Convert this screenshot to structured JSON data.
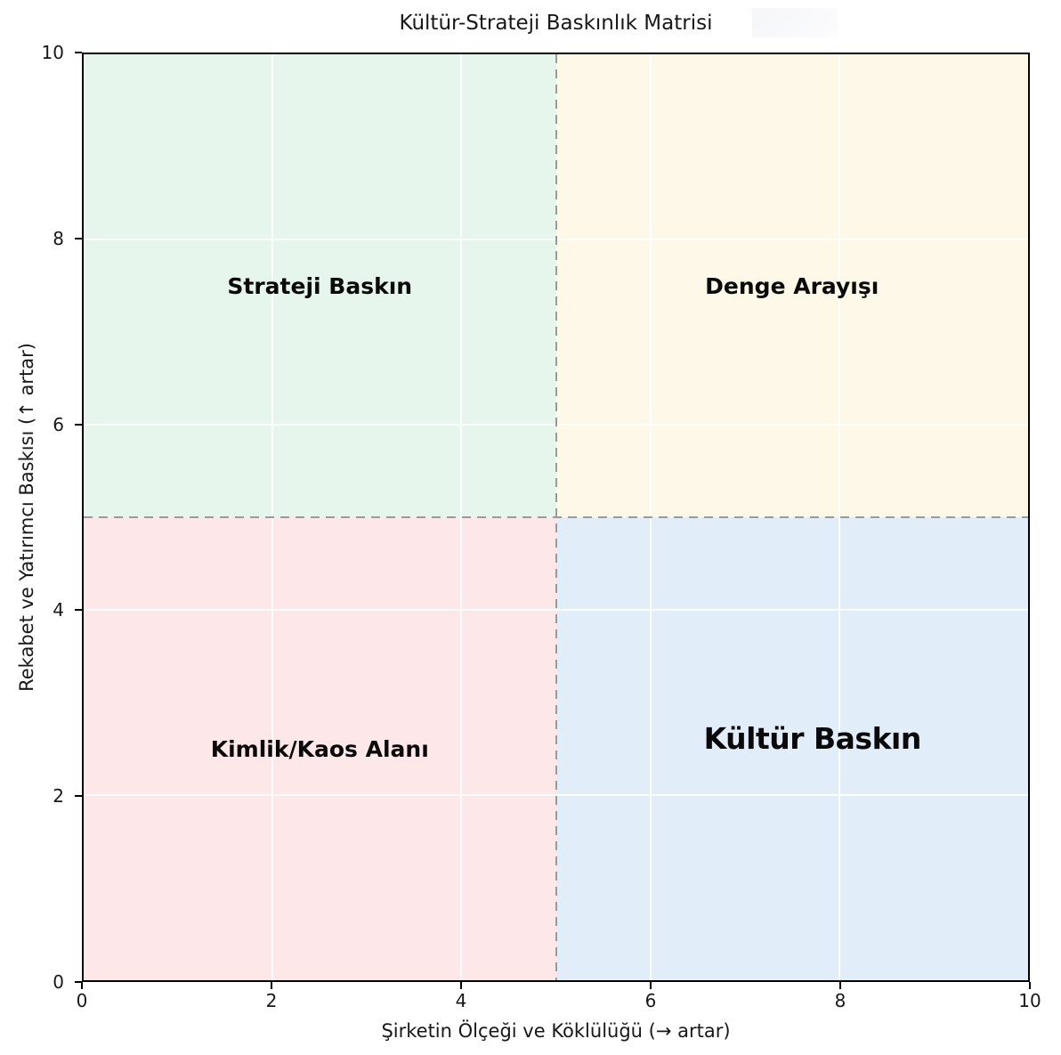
{
  "chart_data": {
    "type": "quadrant-matrix",
    "title": "Kültür-Strateji Baskınlık Matrisi",
    "xlabel": "Şirketin Ölçeği ve Köklülüğü (→ artar)",
    "ylabel": "Rekabet ve Yatırımcı Baskısı (↑ artar)",
    "xlim": [
      0,
      10
    ],
    "ylim": [
      0,
      10
    ],
    "xticks": [
      0,
      2,
      4,
      6,
      8,
      10
    ],
    "yticks": [
      0,
      2,
      4,
      6,
      8,
      10
    ],
    "grid": true,
    "grid_color": "#ffffff",
    "dividers": {
      "x": 5,
      "y": 5,
      "color": "#9a9a9a",
      "line_style": "dashed"
    },
    "quadrants": [
      {
        "position": "top-left",
        "label": "Strateji Baskın",
        "color": "#e7f6ed",
        "x_range": [
          0,
          5
        ],
        "y_range": [
          5,
          10
        ],
        "label_at": [
          2.5,
          7.5
        ]
      },
      {
        "position": "top-right",
        "label": "Denge Arayışı",
        "color": "#fdf8e7",
        "x_range": [
          5,
          10
        ],
        "y_range": [
          5,
          10
        ],
        "label_at": [
          7.5,
          7.5
        ]
      },
      {
        "position": "bottom-left",
        "label": "Kimlik/Kaos Alanı",
        "color": "#fde7e9",
        "x_range": [
          0,
          5
        ],
        "y_range": [
          0,
          5
        ],
        "label_at": [
          2.5,
          2.5
        ]
      },
      {
        "position": "bottom-right",
        "label": "Kültür Baskın",
        "color": "#e2edfa",
        "x_range": [
          5,
          10
        ],
        "y_range": [
          0,
          5
        ],
        "label_at": [
          7.7,
          2.6
        ]
      }
    ]
  }
}
